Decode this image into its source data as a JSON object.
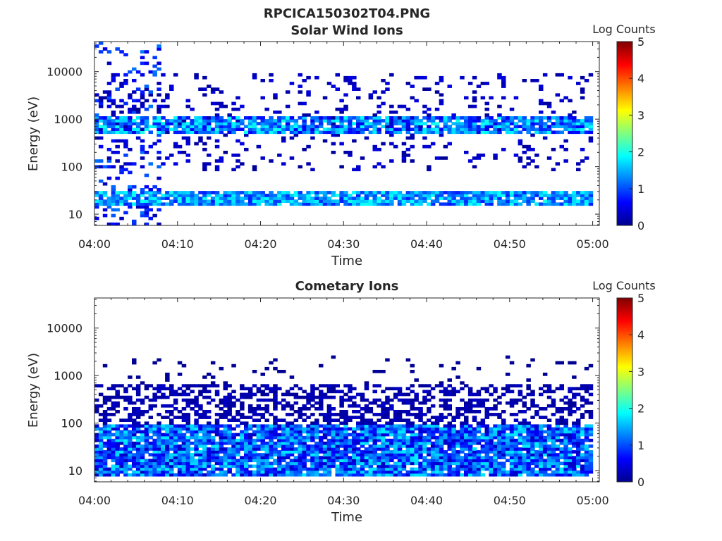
{
  "figure_title": "RPCICA150302T04.PNG",
  "colors": {
    "background": "#ffffff",
    "axis": "#262626",
    "empty_cell": "#ffffff"
  },
  "chart_data": [
    {
      "type": "heatmap",
      "title": "Solar Wind Ions",
      "xlabel": "Time",
      "ylabel": "Energy (eV)",
      "x_ticks": [
        "04:00",
        "04:10",
        "04:20",
        "04:30",
        "04:40",
        "04:50",
        "05:00"
      ],
      "y_ticks": [
        "10",
        "100",
        "1000",
        "10000"
      ],
      "y_scale": "log",
      "ylim": [
        5.8,
        43000
      ],
      "xlim_minutes": [
        0,
        60.8
      ],
      "colorbar": {
        "label": "Log Counts",
        "ticks": [
          "0",
          "1",
          "2",
          "3",
          "4",
          "5"
        ],
        "range": [
          0,
          5
        ],
        "colormap": "jet"
      },
      "grid": false,
      "intensity_bands": [
        {
          "energy_range_eV": [
            15,
            30
          ],
          "log_counts": [
            0.3,
            1.2
          ]
        },
        {
          "energy_range_eV": [
            500,
            1100
          ],
          "log_counts": [
            0.3,
            1.8
          ]
        },
        {
          "energy_range_eV": [
            100,
            8000
          ],
          "log_counts": [
            0.1,
            0.6
          ]
        }
      ]
    },
    {
      "type": "heatmap",
      "title": "Cometary Ions",
      "xlabel": "Time",
      "ylabel": "Energy (eV)",
      "x_ticks": [
        "04:00",
        "04:10",
        "04:20",
        "04:30",
        "04:40",
        "04:50",
        "05:00"
      ],
      "y_ticks": [
        "10",
        "100",
        "1000",
        "10000"
      ],
      "y_scale": "log",
      "ylim": [
        5.8,
        43000
      ],
      "xlim_minutes": [
        0,
        60.8
      ],
      "colorbar": {
        "label": "Log Counts",
        "ticks": [
          "0",
          "1",
          "2",
          "3",
          "4",
          "5"
        ],
        "range": [
          0,
          5
        ],
        "colormap": "jet"
      },
      "grid": false,
      "intensity_bands": [
        {
          "energy_range_eV": [
            8,
            100
          ],
          "log_counts": [
            0.3,
            1.8
          ]
        },
        {
          "energy_range_eV": [
            100,
            700
          ],
          "log_counts": [
            0.1,
            0.4
          ]
        }
      ]
    }
  ]
}
